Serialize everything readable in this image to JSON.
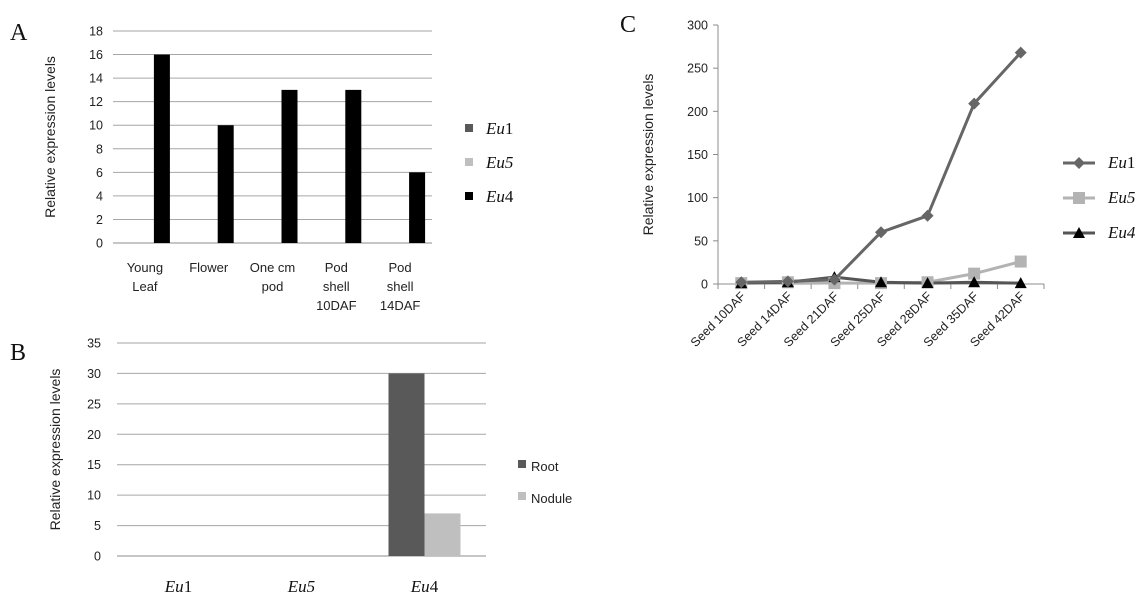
{
  "chart_data": [
    {
      "panel": "A",
      "type": "bar",
      "ylabel": "Relative expression levels",
      "ylim": [
        0,
        18
      ],
      "yticks": [
        "0",
        "2",
        "4",
        "6",
        "8",
        "10",
        "12",
        "14",
        "16",
        "18"
      ],
      "categories": [
        [
          "Young",
          "Leaf"
        ],
        [
          "Flower"
        ],
        [
          "One cm",
          "pod"
        ],
        [
          "Pod",
          "shell",
          "10DAF"
        ],
        [
          "Pod",
          "shell",
          "14DAF"
        ]
      ],
      "series": [
        {
          "name": "Eu1",
          "color": "#595959",
          "values": [
            0,
            0,
            0,
            0,
            0
          ]
        },
        {
          "name": "Eu5",
          "color": "#bfbfbf",
          "values": [
            0,
            0,
            0,
            0,
            0
          ]
        },
        {
          "name": "Eu4",
          "color": "#000000",
          "values": [
            16,
            10,
            13,
            13,
            6
          ]
        }
      ],
      "legend": [
        {
          "italic": "Eu",
          "plain": "1",
          "color": "#595959"
        },
        {
          "italic": "Eu5",
          "plain": "",
          "color": "#bfbfbf"
        },
        {
          "italic": "Eu",
          "plain": "4",
          "color": "#000000"
        }
      ],
      "grid": true,
      "legend_position": "right"
    },
    {
      "panel": "B",
      "type": "bar",
      "ylabel": "Relative expression levels",
      "ylim": [
        0,
        35
      ],
      "yticks": [
        "0",
        "5",
        "10",
        "15",
        "20",
        "25",
        "30",
        "35"
      ],
      "categories": [
        {
          "italic": "Eu",
          "plain": "1"
        },
        {
          "italic": "Eu5",
          "plain": ""
        },
        {
          "italic": "Eu",
          "plain": "4"
        }
      ],
      "series": [
        {
          "name": "Root",
          "color": "#595959",
          "values": [
            0,
            0,
            30
          ]
        },
        {
          "name": "Nodule",
          "color": "#bfbfbf",
          "values": [
            0,
            0,
            7
          ]
        }
      ],
      "grid": true,
      "legend_position": "right"
    },
    {
      "panel": "C",
      "type": "line",
      "ylabel": "Relative expression levels",
      "ylim": [
        0,
        300
      ],
      "yticks": [
        "0",
        "50",
        "100",
        "150",
        "200",
        "250",
        "300"
      ],
      "categories": [
        "Seed 10DAF",
        "Seed 14DAF",
        "Seed 21DAF",
        "Seed 25DAF",
        "Seed 28DAF",
        "Seed 35DAF",
        "Seed 42DAF"
      ],
      "series": [
        {
          "name": "Eu1",
          "color": "#666666",
          "marker": "diamond",
          "values": [
            2,
            3,
            5,
            60,
            79,
            209,
            268
          ]
        },
        {
          "name": "Eu5",
          "color": "#b3b3b3",
          "marker": "square",
          "values": [
            1,
            2,
            1,
            1,
            2,
            12,
            26
          ]
        },
        {
          "name": "Eu4",
          "color": "#555555",
          "marker": "triangle",
          "values": [
            1,
            2,
            8,
            2,
            1,
            2,
            1
          ]
        }
      ],
      "legend": [
        {
          "italic": "Eu",
          "plain": "1"
        },
        {
          "italic": "Eu5",
          "plain": ""
        },
        {
          "italic": "Eu4",
          "plain": ""
        }
      ],
      "grid": false,
      "legend_position": "right"
    }
  ]
}
